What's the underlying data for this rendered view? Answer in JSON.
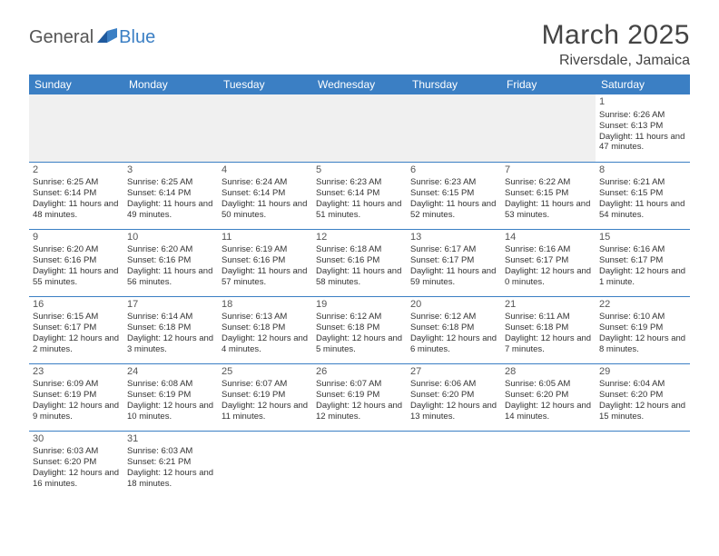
{
  "logo": {
    "general": "General",
    "blue": "Blue"
  },
  "title": "March 2025",
  "location": "Riversdale, Jamaica",
  "colors": {
    "header_bg": "#3b7fc4",
    "header_text": "#ffffff",
    "border": "#3b7fc4",
    "empty_bg": "#f0f0f0",
    "text": "#333333",
    "title_text": "#444444"
  },
  "typography": {
    "title_fontsize": 30,
    "location_fontsize": 16,
    "dayheader_fontsize": 12,
    "daynum_fontsize": 11,
    "body_fontsize": 9.5
  },
  "day_headers": [
    "Sunday",
    "Monday",
    "Tuesday",
    "Wednesday",
    "Thursday",
    "Friday",
    "Saturday"
  ],
  "weeks": [
    [
      null,
      null,
      null,
      null,
      null,
      null,
      {
        "n": "1",
        "sr": "Sunrise: 6:26 AM",
        "ss": "Sunset: 6:13 PM",
        "dl": "Daylight: 11 hours and 47 minutes."
      }
    ],
    [
      {
        "n": "2",
        "sr": "Sunrise: 6:25 AM",
        "ss": "Sunset: 6:14 PM",
        "dl": "Daylight: 11 hours and 48 minutes."
      },
      {
        "n": "3",
        "sr": "Sunrise: 6:25 AM",
        "ss": "Sunset: 6:14 PM",
        "dl": "Daylight: 11 hours and 49 minutes."
      },
      {
        "n": "4",
        "sr": "Sunrise: 6:24 AM",
        "ss": "Sunset: 6:14 PM",
        "dl": "Daylight: 11 hours and 50 minutes."
      },
      {
        "n": "5",
        "sr": "Sunrise: 6:23 AM",
        "ss": "Sunset: 6:14 PM",
        "dl": "Daylight: 11 hours and 51 minutes."
      },
      {
        "n": "6",
        "sr": "Sunrise: 6:23 AM",
        "ss": "Sunset: 6:15 PM",
        "dl": "Daylight: 11 hours and 52 minutes."
      },
      {
        "n": "7",
        "sr": "Sunrise: 6:22 AM",
        "ss": "Sunset: 6:15 PM",
        "dl": "Daylight: 11 hours and 53 minutes."
      },
      {
        "n": "8",
        "sr": "Sunrise: 6:21 AM",
        "ss": "Sunset: 6:15 PM",
        "dl": "Daylight: 11 hours and 54 minutes."
      }
    ],
    [
      {
        "n": "9",
        "sr": "Sunrise: 6:20 AM",
        "ss": "Sunset: 6:16 PM",
        "dl": "Daylight: 11 hours and 55 minutes."
      },
      {
        "n": "10",
        "sr": "Sunrise: 6:20 AM",
        "ss": "Sunset: 6:16 PM",
        "dl": "Daylight: 11 hours and 56 minutes."
      },
      {
        "n": "11",
        "sr": "Sunrise: 6:19 AM",
        "ss": "Sunset: 6:16 PM",
        "dl": "Daylight: 11 hours and 57 minutes."
      },
      {
        "n": "12",
        "sr": "Sunrise: 6:18 AM",
        "ss": "Sunset: 6:16 PM",
        "dl": "Daylight: 11 hours and 58 minutes."
      },
      {
        "n": "13",
        "sr": "Sunrise: 6:17 AM",
        "ss": "Sunset: 6:17 PM",
        "dl": "Daylight: 11 hours and 59 minutes."
      },
      {
        "n": "14",
        "sr": "Sunrise: 6:16 AM",
        "ss": "Sunset: 6:17 PM",
        "dl": "Daylight: 12 hours and 0 minutes."
      },
      {
        "n": "15",
        "sr": "Sunrise: 6:16 AM",
        "ss": "Sunset: 6:17 PM",
        "dl": "Daylight: 12 hours and 1 minute."
      }
    ],
    [
      {
        "n": "16",
        "sr": "Sunrise: 6:15 AM",
        "ss": "Sunset: 6:17 PM",
        "dl": "Daylight: 12 hours and 2 minutes."
      },
      {
        "n": "17",
        "sr": "Sunrise: 6:14 AM",
        "ss": "Sunset: 6:18 PM",
        "dl": "Daylight: 12 hours and 3 minutes."
      },
      {
        "n": "18",
        "sr": "Sunrise: 6:13 AM",
        "ss": "Sunset: 6:18 PM",
        "dl": "Daylight: 12 hours and 4 minutes."
      },
      {
        "n": "19",
        "sr": "Sunrise: 6:12 AM",
        "ss": "Sunset: 6:18 PM",
        "dl": "Daylight: 12 hours and 5 minutes."
      },
      {
        "n": "20",
        "sr": "Sunrise: 6:12 AM",
        "ss": "Sunset: 6:18 PM",
        "dl": "Daylight: 12 hours and 6 minutes."
      },
      {
        "n": "21",
        "sr": "Sunrise: 6:11 AM",
        "ss": "Sunset: 6:18 PM",
        "dl": "Daylight: 12 hours and 7 minutes."
      },
      {
        "n": "22",
        "sr": "Sunrise: 6:10 AM",
        "ss": "Sunset: 6:19 PM",
        "dl": "Daylight: 12 hours and 8 minutes."
      }
    ],
    [
      {
        "n": "23",
        "sr": "Sunrise: 6:09 AM",
        "ss": "Sunset: 6:19 PM",
        "dl": "Daylight: 12 hours and 9 minutes."
      },
      {
        "n": "24",
        "sr": "Sunrise: 6:08 AM",
        "ss": "Sunset: 6:19 PM",
        "dl": "Daylight: 12 hours and 10 minutes."
      },
      {
        "n": "25",
        "sr": "Sunrise: 6:07 AM",
        "ss": "Sunset: 6:19 PM",
        "dl": "Daylight: 12 hours and 11 minutes."
      },
      {
        "n": "26",
        "sr": "Sunrise: 6:07 AM",
        "ss": "Sunset: 6:19 PM",
        "dl": "Daylight: 12 hours and 12 minutes."
      },
      {
        "n": "27",
        "sr": "Sunrise: 6:06 AM",
        "ss": "Sunset: 6:20 PM",
        "dl": "Daylight: 12 hours and 13 minutes."
      },
      {
        "n": "28",
        "sr": "Sunrise: 6:05 AM",
        "ss": "Sunset: 6:20 PM",
        "dl": "Daylight: 12 hours and 14 minutes."
      },
      {
        "n": "29",
        "sr": "Sunrise: 6:04 AM",
        "ss": "Sunset: 6:20 PM",
        "dl": "Daylight: 12 hours and 15 minutes."
      }
    ],
    [
      {
        "n": "30",
        "sr": "Sunrise: 6:03 AM",
        "ss": "Sunset: 6:20 PM",
        "dl": "Daylight: 12 hours and 16 minutes."
      },
      {
        "n": "31",
        "sr": "Sunrise: 6:03 AM",
        "ss": "Sunset: 6:21 PM",
        "dl": "Daylight: 12 hours and 18 minutes."
      },
      null,
      null,
      null,
      null,
      null
    ]
  ]
}
